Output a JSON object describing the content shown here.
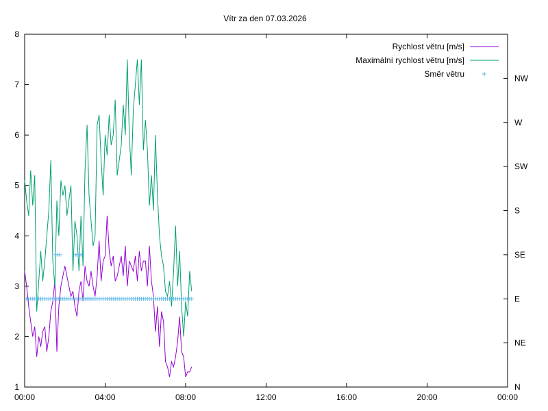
{
  "chart_data": {
    "type": "line",
    "title": "Vítr za den 07.03.2026",
    "x_tick_labels": [
      "00:00",
      "04:00",
      "08:00",
      "12:00",
      "16:00",
      "20:00",
      "00:00"
    ],
    "x_range_hours": [
      0,
      24
    ],
    "y_left": {
      "range": [
        1,
        8
      ],
      "ticks": [
        1,
        2,
        3,
        4,
        5,
        6,
        7,
        8
      ]
    },
    "y_right": {
      "unit": "direction",
      "tick_labels": [
        "N",
        "NE",
        "E",
        "SE",
        "S",
        "SW",
        "W",
        "NW"
      ],
      "range": [
        0,
        8
      ]
    },
    "legend_position": "top-right",
    "series": [
      {
        "name": "Rychlost větru [m/s]",
        "color": "#9400d3",
        "style": "line",
        "x": [
          0.0,
          0.1,
          0.2,
          0.3,
          0.4,
          0.5,
          0.6,
          0.7,
          0.8,
          0.9,
          1.0,
          1.1,
          1.2,
          1.3,
          1.4,
          1.5,
          1.6,
          1.7,
          1.8,
          1.9,
          2.0,
          2.1,
          2.2,
          2.3,
          2.4,
          2.5,
          2.6,
          2.7,
          2.8,
          2.9,
          3.0,
          3.1,
          3.2,
          3.3,
          3.4,
          3.5,
          3.6,
          3.7,
          3.8,
          3.9,
          4.0,
          4.1,
          4.2,
          4.3,
          4.4,
          4.5,
          4.6,
          4.7,
          4.8,
          4.9,
          5.0,
          5.1,
          5.2,
          5.3,
          5.4,
          5.5,
          5.6,
          5.7,
          5.8,
          5.9,
          6.0,
          6.1,
          6.2,
          6.3,
          6.4,
          6.5,
          6.6,
          6.7,
          6.8,
          6.9,
          7.0,
          7.1,
          7.2,
          7.3,
          7.4,
          7.5,
          7.6,
          7.7,
          7.8,
          7.9,
          8.0,
          8.1,
          8.2,
          8.3
        ],
        "values": [
          3.3,
          3.0,
          2.6,
          2.3,
          2.0,
          2.2,
          1.6,
          2.0,
          1.8,
          2.1,
          2.2,
          1.7,
          2.0,
          2.5,
          2.7,
          3.1,
          1.7,
          2.6,
          3.0,
          3.2,
          3.4,
          3.2,
          3.0,
          2.8,
          2.9,
          2.6,
          2.4,
          2.9,
          3.1,
          2.7,
          3.4,
          3.1,
          3.0,
          3.3,
          3.0,
          2.8,
          3.2,
          3.9,
          3.1,
          3.5,
          3.6,
          4.4,
          3.7,
          3.4,
          3.6,
          3.1,
          3.2,
          3.4,
          3.6,
          3.2,
          3.8,
          3.0,
          3.5,
          3.4,
          3.3,
          3.6,
          3.1,
          3.7,
          3.3,
          3.5,
          3.5,
          3.0,
          3.8,
          3.1,
          2.8,
          2.1,
          2.6,
          1.8,
          2.5,
          2.3,
          1.5,
          1.4,
          1.2,
          1.5,
          1.4,
          1.6,
          1.9,
          2.4,
          1.7,
          1.6,
          1.2,
          1.3,
          1.3,
          1.4
        ]
      },
      {
        "name": "Maximální rychlost větru [m/s]",
        "color": "#009e73",
        "style": "line",
        "x": [
          0.0,
          0.1,
          0.2,
          0.3,
          0.4,
          0.5,
          0.6,
          0.7,
          0.8,
          0.9,
          1.0,
          1.1,
          1.2,
          1.3,
          1.4,
          1.5,
          1.6,
          1.7,
          1.8,
          1.9,
          2.0,
          2.1,
          2.2,
          2.3,
          2.4,
          2.5,
          2.6,
          2.7,
          2.8,
          2.9,
          3.0,
          3.1,
          3.2,
          3.3,
          3.4,
          3.5,
          3.6,
          3.7,
          3.8,
          3.9,
          4.0,
          4.1,
          4.2,
          4.3,
          4.4,
          4.5,
          4.6,
          4.7,
          4.8,
          4.9,
          5.0,
          5.1,
          5.2,
          5.3,
          5.4,
          5.5,
          5.6,
          5.7,
          5.8,
          5.9,
          6.0,
          6.1,
          6.2,
          6.3,
          6.4,
          6.5,
          6.6,
          6.7,
          6.8,
          6.9,
          7.0,
          7.1,
          7.2,
          7.3,
          7.4,
          7.5,
          7.6,
          7.7,
          7.8,
          7.9,
          8.0,
          8.1,
          8.2,
          8.3
        ],
        "values": [
          5.1,
          4.7,
          4.4,
          5.3,
          4.6,
          5.2,
          2.5,
          3.1,
          3.7,
          3.1,
          3.5,
          4.0,
          4.5,
          5.5,
          3.5,
          3.0,
          4.7,
          4.0,
          5.1,
          4.8,
          5.0,
          4.4,
          4.7,
          5.0,
          3.3,
          4.3,
          4.0,
          3.3,
          4.4,
          3.4,
          5.3,
          6.2,
          4.8,
          4.3,
          3.8,
          4.0,
          6.2,
          6.4,
          5.5,
          4.8,
          6.0,
          5.6,
          6.4,
          5.8,
          6.0,
          6.7,
          5.2,
          5.5,
          5.8,
          6.6,
          6.0,
          7.5,
          6.0,
          5.2,
          6.5,
          7.0,
          7.5,
          6.6,
          7.5,
          5.7,
          6.3,
          5.7,
          4.6,
          5.2,
          4.5,
          6.0,
          4.8,
          4.0,
          3.6,
          3.4,
          2.9,
          2.8,
          3.1,
          2.6,
          3.3,
          4.2,
          3.0,
          3.7,
          2.6,
          2.0,
          2.7,
          2.4,
          3.3,
          2.9
        ]
      },
      {
        "name": "Směr větru",
        "color": "#56b4e9",
        "style": "points",
        "x": [
          0.1,
          0.2,
          0.3,
          0.4,
          0.5,
          0.6,
          0.7,
          0.8,
          0.9,
          1.0,
          1.1,
          1.2,
          1.3,
          1.4,
          1.5,
          1.6,
          1.7,
          1.8,
          1.9,
          2.0,
          2.1,
          2.2,
          2.3,
          2.4,
          2.5,
          2.6,
          2.7,
          2.8,
          2.9,
          3.0,
          3.1,
          3.2,
          3.3,
          3.4,
          3.5,
          3.6,
          3.7,
          3.8,
          3.9,
          4.0,
          4.1,
          4.2,
          4.3,
          4.4,
          4.5,
          4.6,
          4.7,
          4.8,
          4.9,
          5.0,
          5.1,
          5.2,
          5.3,
          5.4,
          5.5,
          5.6,
          5.7,
          5.8,
          5.9,
          6.0,
          6.1,
          6.2,
          6.3,
          6.4,
          6.5,
          6.6,
          6.7,
          6.8,
          6.9,
          7.0,
          7.1,
          7.2,
          7.3,
          7.4,
          7.5,
          7.6,
          7.7,
          7.8,
          7.9,
          8.0,
          8.1,
          8.2,
          8.3,
          1.55,
          1.65,
          1.75,
          2.55,
          2.65,
          2.75,
          2.85
        ],
        "values": [
          2,
          2,
          2,
          2,
          2,
          2,
          2,
          2,
          2,
          2,
          2,
          2,
          2,
          2,
          2,
          2,
          2,
          2,
          2,
          2,
          2,
          2,
          2,
          2,
          2,
          2,
          2,
          2,
          2,
          2,
          2,
          2,
          2,
          2,
          2,
          2,
          2,
          2,
          2,
          2,
          2,
          2,
          2,
          2,
          2,
          2,
          2,
          2,
          2,
          2,
          2,
          2,
          2,
          2,
          2,
          2,
          2,
          2,
          2,
          2,
          2,
          2,
          2,
          2,
          2,
          2,
          2,
          2,
          2,
          2,
          2,
          2,
          2,
          2,
          2,
          2,
          2,
          2,
          2,
          2,
          2,
          2,
          2,
          3,
          3,
          3,
          3,
          3,
          3,
          3
        ]
      }
    ]
  }
}
